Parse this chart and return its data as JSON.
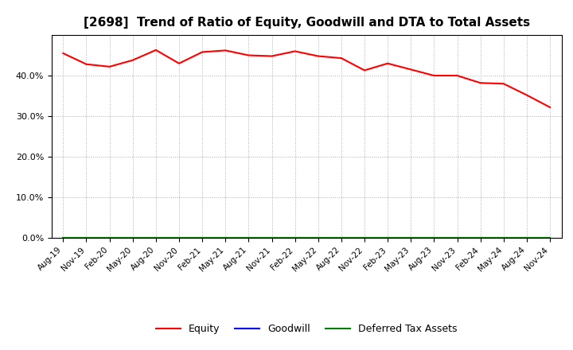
{
  "title": "[2698]  Trend of Ratio of Equity, Goodwill and DTA to Total Assets",
  "x_labels": [
    "Aug-19",
    "Nov-19",
    "Feb-20",
    "May-20",
    "Aug-20",
    "Nov-20",
    "Feb-21",
    "May-21",
    "Aug-21",
    "Nov-21",
    "Feb-22",
    "May-22",
    "Aug-22",
    "Nov-22",
    "Feb-23",
    "May-23",
    "Aug-23",
    "Nov-23",
    "Feb-24",
    "May-24",
    "Aug-24",
    "Nov-24"
  ],
  "equity": [
    0.455,
    0.428,
    0.422,
    0.438,
    0.463,
    0.43,
    0.458,
    0.462,
    0.45,
    0.448,
    0.46,
    0.448,
    0.443,
    0.413,
    0.43,
    0.415,
    0.4,
    0.4,
    0.382,
    0.38,
    0.352,
    0.322
  ],
  "goodwill": [
    0.0,
    0.0,
    0.0,
    0.0,
    0.0,
    0.0,
    0.0,
    0.0,
    0.0,
    0.0,
    0.0,
    0.0,
    0.0,
    0.0,
    0.0,
    0.0,
    0.0,
    0.0,
    0.0,
    0.0,
    0.0,
    0.0
  ],
  "dta": [
    0.0,
    0.0,
    0.0,
    0.0,
    0.0,
    0.0,
    0.0,
    0.0,
    0.0,
    0.0,
    0.0,
    0.0,
    0.0,
    0.0,
    0.0,
    0.0,
    0.0,
    0.0,
    0.0,
    0.0,
    0.0,
    0.0
  ],
  "equity_color": "#ff0000",
  "goodwill_color": "#0000ff",
  "dta_color": "#008000",
  "ylim": [
    0.0,
    0.5
  ],
  "yticks": [
    0.0,
    0.1,
    0.2,
    0.3,
    0.4
  ],
  "background_color": "#ffffff",
  "plot_bg_color": "#ffffff",
  "grid_color": "#aaaaaa",
  "title_fontsize": 11,
  "legend_labels": [
    "Equity",
    "Goodwill",
    "Deferred Tax Assets"
  ]
}
